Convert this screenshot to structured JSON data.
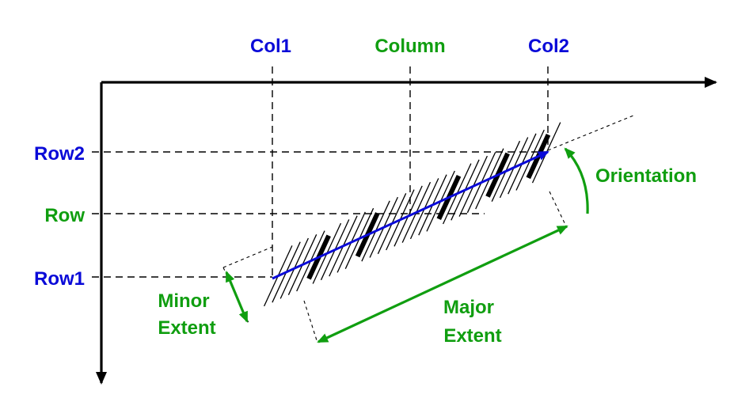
{
  "labels": {
    "col1": "Col1",
    "column": "Column",
    "col2": "Col2",
    "row2": "Row2",
    "row": "Row",
    "row1": "Row1",
    "orientation": "Orientation",
    "minor_extent_line1": "Minor",
    "minor_extent_line2": "Extent",
    "major_extent_line1": "Major",
    "major_extent_line2": "Extent"
  },
  "colors": {
    "point_labels": "#0a0ad8",
    "center_labels": "#109e10",
    "axes": "#000000"
  }
}
